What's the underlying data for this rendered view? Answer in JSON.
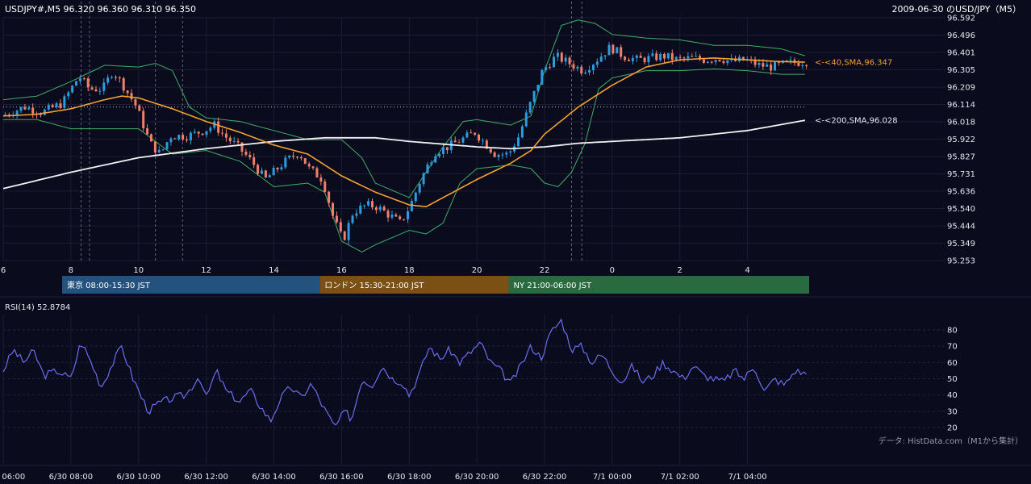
{
  "header": {
    "ohlc": "USDJPY#,M5 96.320 96.360 96.310 96.350",
    "title": "2009-06-30 のUSD/JPY（M5）"
  },
  "colors": {
    "background": "#0a0b1c",
    "bull": "#2e9be0",
    "bear": "#f0806a",
    "sma40": "#f5a030",
    "sma200": "#f2f2f2",
    "bollinger": "#3fae6a",
    "rsi": "#6a6ef0",
    "tokyo": "#23527f",
    "london": "#7a5015",
    "ny": "#2a6a3f"
  },
  "chart_data": [
    {
      "type": "candlestick",
      "symbol": "USDJPY#",
      "timeframe": "M5",
      "y_ticks": [
        "96.592",
        "96.496",
        "96.401",
        "96.305",
        "96.209",
        "96.114",
        "96.018",
        "95.922",
        "95.827",
        "95.731",
        "95.636",
        "95.540",
        "95.444",
        "95.349",
        "95.253"
      ],
      "ylim": [
        95.253,
        96.592
      ],
      "x_ticks": [
        "6",
        "8",
        "10",
        "12",
        "14",
        "16",
        "18",
        "20",
        "22",
        "0",
        "2",
        "4"
      ],
      "x_tick_hours": [
        6,
        8,
        10,
        12,
        14,
        16,
        18,
        20,
        22,
        24,
        26,
        28
      ],
      "x_range_hours": [
        6,
        29.75
      ],
      "key_points": [
        [
          6.0,
          96.05
        ],
        [
          6.7,
          96.1
        ],
        [
          7.2,
          96.07
        ],
        [
          7.8,
          96.12
        ],
        [
          8.3,
          96.27
        ],
        [
          8.6,
          96.2
        ],
        [
          9.0,
          96.2
        ],
        [
          9.3,
          96.3
        ],
        [
          9.6,
          96.22
        ],
        [
          10.0,
          96.1
        ],
        [
          10.4,
          95.9
        ],
        [
          10.7,
          95.84
        ],
        [
          11.0,
          95.94
        ],
        [
          11.5,
          95.94
        ],
        [
          12.0,
          95.97
        ],
        [
          12.3,
          96.0
        ],
        [
          12.6,
          95.94
        ],
        [
          13.0,
          95.88
        ],
        [
          13.4,
          95.8
        ],
        [
          13.8,
          95.7
        ],
        [
          14.1,
          95.75
        ],
        [
          14.4,
          95.8
        ],
        [
          14.8,
          95.85
        ],
        [
          15.1,
          95.76
        ],
        [
          15.5,
          95.7
        ],
        [
          15.8,
          95.5
        ],
        [
          16.1,
          95.36
        ],
        [
          16.4,
          95.52
        ],
        [
          16.8,
          95.56
        ],
        [
          17.1,
          95.55
        ],
        [
          17.5,
          95.5
        ],
        [
          17.8,
          95.46
        ],
        [
          18.1,
          95.56
        ],
        [
          18.4,
          95.7
        ],
        [
          18.8,
          95.85
        ],
        [
          19.2,
          95.88
        ],
        [
          19.6,
          95.92
        ],
        [
          20.0,
          95.96
        ],
        [
          20.3,
          95.9
        ],
        [
          20.6,
          95.84
        ],
        [
          21.0,
          95.84
        ],
        [
          21.3,
          95.94
        ],
        [
          21.6,
          96.1
        ],
        [
          22.0,
          96.3
        ],
        [
          22.4,
          96.38
        ],
        [
          22.8,
          96.34
        ],
        [
          23.2,
          96.3
        ],
        [
          23.6,
          96.36
        ],
        [
          24.0,
          96.43
        ],
        [
          24.4,
          96.38
        ],
        [
          24.8,
          96.36
        ],
        [
          25.2,
          96.37
        ],
        [
          25.6,
          96.38
        ],
        [
          26.0,
          96.36
        ],
        [
          26.4,
          96.37
        ],
        [
          26.8,
          96.36
        ],
        [
          27.2,
          96.37
        ],
        [
          27.6,
          96.35
        ],
        [
          28.0,
          96.36
        ],
        [
          28.4,
          96.33
        ],
        [
          28.8,
          96.32
        ],
        [
          29.2,
          96.34
        ],
        [
          29.75,
          96.35
        ]
      ],
      "sma40_points": [
        [
          6.0,
          96.05
        ],
        [
          7.0,
          96.06
        ],
        [
          8.0,
          96.09
        ],
        [
          9.0,
          96.14
        ],
        [
          9.5,
          96.16
        ],
        [
          10.0,
          96.15
        ],
        [
          11.0,
          96.09
        ],
        [
          12.0,
          96.02
        ],
        [
          13.0,
          95.96
        ],
        [
          14.0,
          95.89
        ],
        [
          15.0,
          95.84
        ],
        [
          16.0,
          95.72
        ],
        [
          17.0,
          95.63
        ],
        [
          18.0,
          95.56
        ],
        [
          18.5,
          95.55
        ],
        [
          19.0,
          95.6
        ],
        [
          20.0,
          95.7
        ],
        [
          21.0,
          95.79
        ],
        [
          21.6,
          95.86
        ],
        [
          22.0,
          95.95
        ],
        [
          23.0,
          96.1
        ],
        [
          24.0,
          96.22
        ],
        [
          25.0,
          96.32
        ],
        [
          26.0,
          96.36
        ],
        [
          27.0,
          96.37
        ],
        [
          28.0,
          96.36
        ],
        [
          29.0,
          96.35
        ],
        [
          29.75,
          96.347
        ]
      ],
      "sma200_points": [
        [
          6.0,
          95.65
        ],
        [
          8.0,
          95.74
        ],
        [
          10.0,
          95.82
        ],
        [
          12.0,
          95.87
        ],
        [
          14.0,
          95.91
        ],
        [
          15.5,
          95.93
        ],
        [
          17.0,
          95.93
        ],
        [
          18.0,
          95.91
        ],
        [
          20.0,
          95.88
        ],
        [
          21.0,
          95.87
        ],
        [
          22.0,
          95.88
        ],
        [
          23.0,
          95.9
        ],
        [
          24.0,
          95.91
        ],
        [
          25.0,
          95.92
        ],
        [
          26.0,
          95.93
        ],
        [
          27.0,
          95.95
        ],
        [
          28.0,
          95.97
        ],
        [
          29.75,
          96.028
        ]
      ],
      "bollinger_upper": [
        [
          6.0,
          96.14
        ],
        [
          7.0,
          96.16
        ],
        [
          8.0,
          96.24
        ],
        [
          9.0,
          96.33
        ],
        [
          10.0,
          96.32
        ],
        [
          10.5,
          96.34
        ],
        [
          11.0,
          96.3
        ],
        [
          11.5,
          96.1
        ],
        [
          12.0,
          96.04
        ],
        [
          13.0,
          96.02
        ],
        [
          14.0,
          95.97
        ],
        [
          15.0,
          95.92
        ],
        [
          16.0,
          95.92
        ],
        [
          16.6,
          95.82
        ],
        [
          17.0,
          95.68
        ],
        [
          18.0,
          95.6
        ],
        [
          19.0,
          95.88
        ],
        [
          19.6,
          96.02
        ],
        [
          20.0,
          96.03
        ],
        [
          21.0,
          96.0
        ],
        [
          21.6,
          96.05
        ],
        [
          22.0,
          96.3
        ],
        [
          22.5,
          96.55
        ],
        [
          23.0,
          96.58
        ],
        [
          23.5,
          96.56
        ],
        [
          24.0,
          96.5
        ],
        [
          25.0,
          96.48
        ],
        [
          26.0,
          96.47
        ],
        [
          27.0,
          96.44
        ],
        [
          28.0,
          96.44
        ],
        [
          29.0,
          96.42
        ],
        [
          29.75,
          96.38
        ]
      ],
      "bollinger_lower": [
        [
          6.0,
          96.03
        ],
        [
          7.0,
          96.03
        ],
        [
          8.0,
          95.98
        ],
        [
          9.0,
          95.98
        ],
        [
          10.0,
          95.98
        ],
        [
          11.0,
          95.84
        ],
        [
          12.0,
          95.86
        ],
        [
          13.0,
          95.8
        ],
        [
          14.0,
          95.66
        ],
        [
          15.0,
          95.68
        ],
        [
          15.5,
          95.63
        ],
        [
          16.0,
          95.36
        ],
        [
          16.6,
          95.3
        ],
        [
          17.0,
          95.34
        ],
        [
          18.0,
          95.42
        ],
        [
          18.5,
          95.4
        ],
        [
          19.0,
          95.46
        ],
        [
          19.5,
          95.68
        ],
        [
          20.0,
          95.76
        ],
        [
          21.0,
          95.78
        ],
        [
          21.6,
          95.76
        ],
        [
          22.0,
          95.68
        ],
        [
          22.4,
          95.66
        ],
        [
          22.8,
          95.74
        ],
        [
          23.2,
          95.9
        ],
        [
          23.6,
          96.2
        ],
        [
          24.0,
          96.26
        ],
        [
          25.0,
          96.3
        ],
        [
          26.0,
          96.3
        ],
        [
          27.0,
          96.31
        ],
        [
          28.0,
          96.3
        ],
        [
          29.0,
          96.28
        ],
        [
          29.75,
          96.28
        ]
      ],
      "sessions": [
        {
          "label": "東京 08:00-15:30 JST",
          "start_hour": 8,
          "end_hour": 15.5
        },
        {
          "label": "ロンドン 15:30-21:00 JST",
          "start_hour": 15.5,
          "end_hour": 21
        },
        {
          "label": "NY 21:00-06:00 JST",
          "start_hour": 21,
          "end_hour": 29.75
        }
      ],
      "annotations": {
        "sma40": "<-<40,SMA,96.347",
        "sma200": "<-<200,SMA,96.028"
      },
      "reference_level": 96.1,
      "event_marker_hours": [
        8.3,
        8.55,
        10.5,
        11.3,
        22.8,
        23.1
      ]
    },
    {
      "type": "line",
      "title": "RSI(14) 52.8784",
      "y_ticks": [
        "80",
        "70",
        "60",
        "50",
        "40",
        "30",
        "20"
      ],
      "ylim": [
        15,
        90
      ],
      "x_tick_labels": [
        "6/30 06:00",
        "6/30 08:00",
        "6/30 10:00",
        "6/30 12:00",
        "6/30 14:00",
        "6/30 16:00",
        "6/30 18:00",
        "6/30 20:00",
        "6/30 22:00",
        "7/1 00:00",
        "7/1 02:00",
        "7/1 04:00"
      ],
      "key_points": [
        [
          6.0,
          55
        ],
        [
          6.3,
          68
        ],
        [
          6.6,
          60
        ],
        [
          6.9,
          67
        ],
        [
          7.2,
          52
        ],
        [
          7.6,
          55
        ],
        [
          8.0,
          50
        ],
        [
          8.3,
          73
        ],
        [
          8.6,
          60
        ],
        [
          8.9,
          45
        ],
        [
          9.2,
          58
        ],
        [
          9.5,
          70
        ],
        [
          9.8,
          52
        ],
        [
          10.1,
          38
        ],
        [
          10.3,
          30
        ],
        [
          10.6,
          35
        ],
        [
          11.0,
          38
        ],
        [
          11.4,
          40
        ],
        [
          11.8,
          52
        ],
        [
          12.0,
          38
        ],
        [
          12.3,
          55
        ],
        [
          12.6,
          42
        ],
        [
          13.0,
          36
        ],
        [
          13.3,
          43
        ],
        [
          13.6,
          33
        ],
        [
          13.9,
          24
        ],
        [
          14.2,
          38
        ],
        [
          14.5,
          45
        ],
        [
          14.8,
          38
        ],
        [
          15.1,
          47
        ],
        [
          15.4,
          35
        ],
        [
          15.8,
          20
        ],
        [
          16.1,
          30
        ],
        [
          16.3,
          25
        ],
        [
          16.6,
          50
        ],
        [
          16.9,
          46
        ],
        [
          17.2,
          58
        ],
        [
          17.5,
          50
        ],
        [
          17.8,
          48
        ],
        [
          18.0,
          40
        ],
        [
          18.3,
          53
        ],
        [
          18.6,
          70
        ],
        [
          18.9,
          62
        ],
        [
          19.2,
          68
        ],
        [
          19.5,
          60
        ],
        [
          19.8,
          66
        ],
        [
          20.1,
          72
        ],
        [
          20.4,
          60
        ],
        [
          20.7,
          55
        ],
        [
          21.0,
          47
        ],
        [
          21.3,
          58
        ],
        [
          21.6,
          70
        ],
        [
          21.9,
          63
        ],
        [
          22.2,
          79
        ],
        [
          22.5,
          86
        ],
        [
          22.8,
          68
        ],
        [
          23.1,
          70
        ],
        [
          23.4,
          60
        ],
        [
          23.7,
          65
        ],
        [
          24.0,
          55
        ],
        [
          24.3,
          48
        ],
        [
          24.6,
          58
        ],
        [
          24.9,
          48
        ],
        [
          25.2,
          52
        ],
        [
          25.5,
          60
        ],
        [
          25.8,
          55
        ],
        [
          26.1,
          50
        ],
        [
          26.4,
          58
        ],
        [
          26.7,
          52
        ],
        [
          27.0,
          50
        ],
        [
          27.3,
          48
        ],
        [
          27.6,
          55
        ],
        [
          27.9,
          50
        ],
        [
          28.2,
          58
        ],
        [
          28.5,
          42
        ],
        [
          28.8,
          50
        ],
        [
          29.1,
          46
        ],
        [
          29.4,
          55
        ],
        [
          29.75,
          52.8784
        ]
      ]
    }
  ],
  "footer": {
    "source": "データ: HistData.com（M1から集計）"
  }
}
